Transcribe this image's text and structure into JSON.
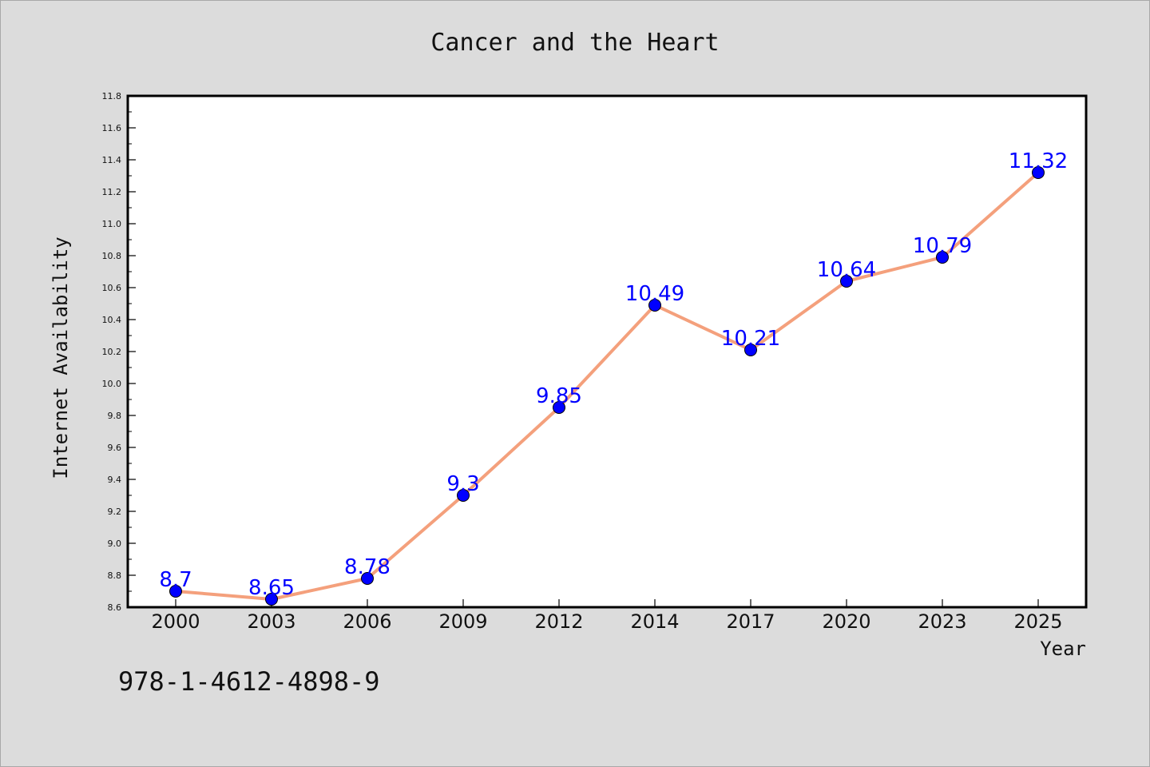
{
  "chart_data": {
    "type": "line",
    "title": "Cancer and the Heart",
    "xlabel": "Year",
    "ylabel": "Internet Availability",
    "categories": [
      "2000",
      "2003",
      "2006",
      "2009",
      "2012",
      "2014",
      "2017",
      "2020",
      "2023",
      "2025"
    ],
    "values": [
      8.7,
      8.65,
      8.78,
      9.3,
      9.85,
      10.49,
      10.21,
      10.64,
      10.79,
      11.32
    ],
    "data_labels": [
      "8.7",
      "8.65",
      "8.78",
      "9.3",
      "9.85",
      "10.49",
      "10.21",
      "10.64",
      "10.79",
      "11.32"
    ],
    "ylim": [
      8.6,
      11.8
    ],
    "yticks": [
      "8.6",
      "8.8",
      "9.0",
      "9.2",
      "9.4",
      "9.6",
      "9.8",
      "10.0",
      "10.2",
      "10.4",
      "10.6",
      "10.8",
      "11.0",
      "11.2",
      "11.4",
      "11.6",
      "11.8"
    ],
    "grid": false,
    "line_color": "#f4a07c",
    "marker_color": "#0000ff",
    "label_color": "#0000ff",
    "background_color": "#dcdcdc",
    "plot_background": "#ffffff"
  },
  "footnote": "978-1-4612-4898-9"
}
